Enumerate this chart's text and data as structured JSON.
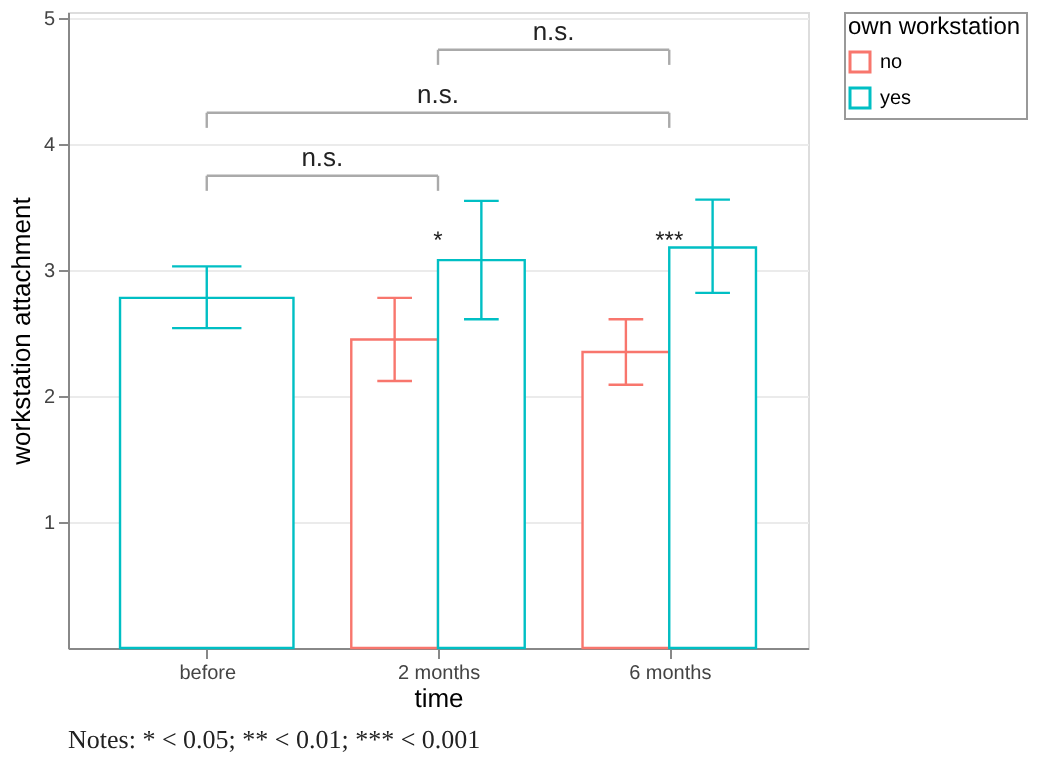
{
  "chart_data": {
    "type": "bar",
    "categories": [
      "before",
      "2 months",
      "6 months"
    ],
    "series": [
      {
        "name": "no",
        "color": "#f8766d",
        "values": [
          null,
          2.45,
          2.35
        ],
        "errors": [
          null,
          [
            2.12,
            2.78
          ],
          [
            2.09,
            2.61
          ]
        ]
      },
      {
        "name": "yes",
        "color": "#00bfc4",
        "values": [
          2.78,
          3.08,
          3.18
        ],
        "errors": [
          [
            2.54,
            3.03
          ],
          [
            2.61,
            3.55
          ],
          [
            2.82,
            3.56
          ]
        ]
      }
    ],
    "xlabel": "time",
    "ylabel": "workstation attachment",
    "legend_title": "own workstation",
    "ylim": [
      0,
      5.05
    ],
    "yticks": [
      1,
      2,
      3,
      4,
      5
    ],
    "grid": "y",
    "legend": "right",
    "annotations": [
      "n.s.",
      "n.s.",
      "n.s.",
      "*",
      "***",
      "Notes: * < 0.05; ** < 0.01; *** < 0.001"
    ]
  }
}
